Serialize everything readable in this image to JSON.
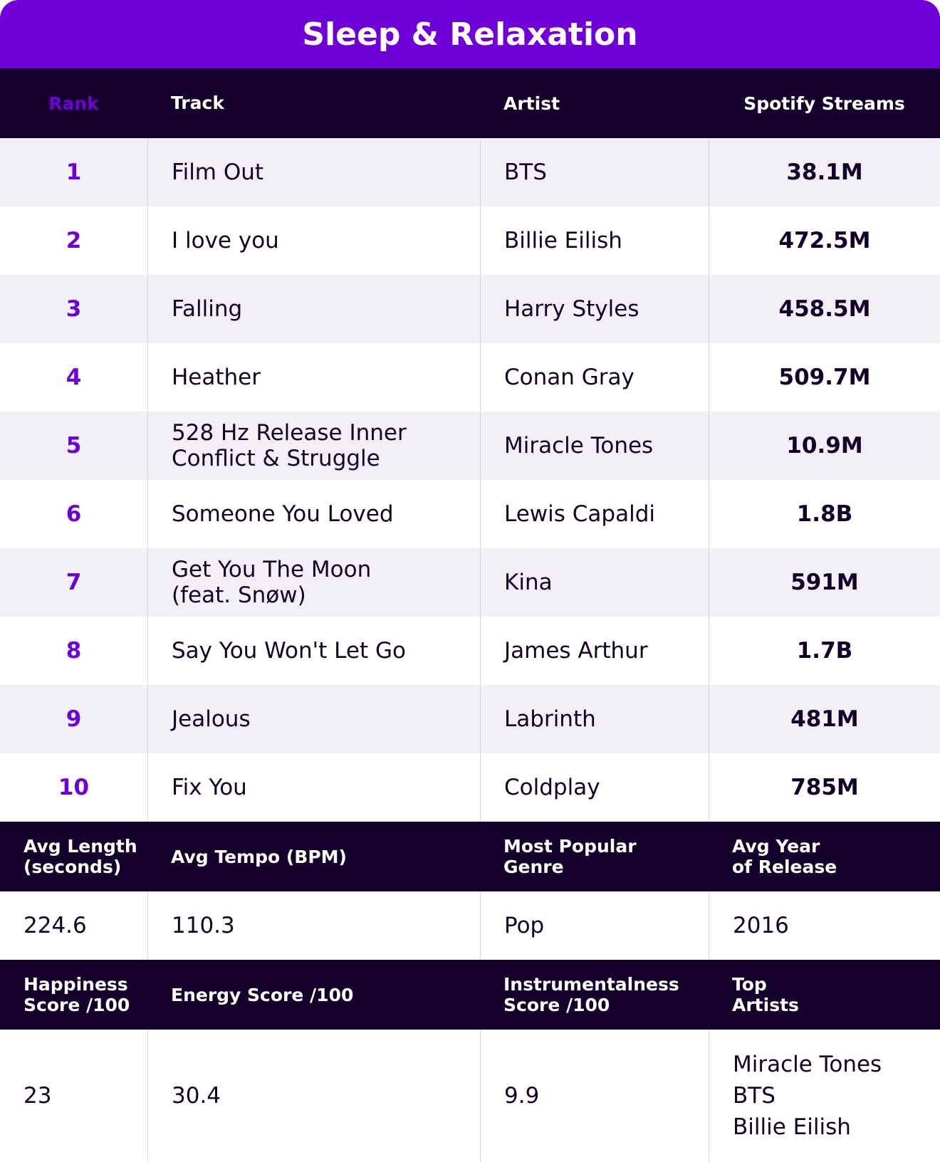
{
  "title": "Sleep & Relaxation",
  "columns": [
    "Rank",
    "Track",
    "Artist",
    "Spotify Streams"
  ],
  "rows": [
    {
      "rank": "1",
      "track": "Film Out",
      "artist": "BTS",
      "streams": "38.1M"
    },
    {
      "rank": "2",
      "track": "I love you",
      "artist": "Billie Eilish",
      "streams": "472.5M"
    },
    {
      "rank": "3",
      "track": "Falling",
      "artist": "Harry Styles",
      "streams": "458.5M"
    },
    {
      "rank": "4",
      "track": "Heather",
      "artist": "Conan Gray",
      "streams": "509.7M"
    },
    {
      "rank": "5",
      "track": "528 Hz Release Inner Conflict & Struggle",
      "artist": "Miracle Tones",
      "streams": "10.9M"
    },
    {
      "rank": "6",
      "track": "Someone You Loved",
      "artist": "Lewis Capaldi",
      "streams": "1.8B"
    },
    {
      "rank": "7",
      "track": "Get You The Moon (feat. Snøw)",
      "artist": "Kina",
      "streams": "591M"
    },
    {
      "rank": "8",
      "track": "Say You Won't Let Go",
      "artist": "James Arthur",
      "streams": "1.7B"
    },
    {
      "rank": "9",
      "track": "Jealous",
      "artist": "Labrinth",
      "streams": "481M"
    },
    {
      "rank": "10",
      "track": "Fix You",
      "artist": "Coldplay",
      "streams": "785M"
    }
  ],
  "stats": [
    {
      "headers": [
        [
          "Avg Length",
          "(seconds)"
        ],
        [
          "Avg Tempo (BPM)"
        ],
        [
          "Most Popular",
          "Genre"
        ],
        [
          "Avg Year",
          "of Release"
        ]
      ],
      "values": [
        [
          "224.6"
        ],
        [
          "110.3"
        ],
        [
          "Pop"
        ],
        [
          "2016"
        ]
      ]
    },
    {
      "headers": [
        [
          "Happiness",
          "Score /100"
        ],
        [
          "Energy Score /100"
        ],
        [
          "Instrumentalness",
          "Score /100"
        ],
        [
          "Top",
          "Artists"
        ]
      ],
      "values": [
        [
          "23"
        ],
        [
          "30.4"
        ],
        [
          "9.9"
        ],
        [
          "Miracle Tones",
          "BTS",
          "Billie Eilish"
        ]
      ]
    }
  ]
}
